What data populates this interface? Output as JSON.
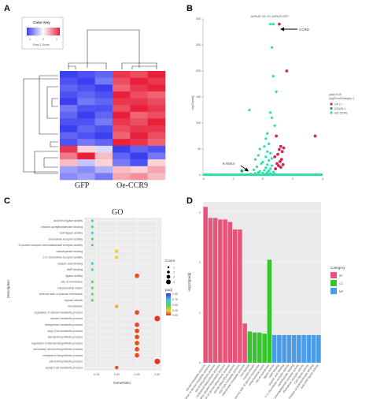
{
  "panels": {
    "a": {
      "label": "A",
      "color_key_title": "Color Key",
      "color_key_ticks": [
        "-1",
        "0",
        "1"
      ],
      "color_key_xlabel": "Row Z-Score",
      "col_labels": [
        "GFP",
        "Oe-CCR9"
      ],
      "heatmap": {
        "rows": 16,
        "cols": 6,
        "values": [
          [
            -1.0,
            -0.9,
            -0.8,
            0.9,
            0.8,
            1.0
          ],
          [
            -0.9,
            -1.0,
            -0.7,
            0.8,
            1.0,
            0.9
          ],
          [
            -0.8,
            -0.9,
            -1.0,
            0.7,
            0.9,
            1.0
          ],
          [
            -0.9,
            -0.8,
            -0.9,
            1.0,
            0.8,
            0.7
          ],
          [
            -1.0,
            -0.7,
            -0.8,
            0.9,
            0.9,
            0.8
          ],
          [
            -0.7,
            -0.9,
            -0.9,
            0.8,
            1.0,
            0.9
          ],
          [
            -0.8,
            -1.0,
            -0.8,
            1.0,
            0.7,
            0.8
          ],
          [
            -0.9,
            -0.9,
            -0.7,
            0.9,
            0.8,
            1.0
          ],
          [
            -1.0,
            -0.8,
            -0.9,
            0.8,
            0.9,
            0.9
          ],
          [
            -0.8,
            -0.9,
            -1.0,
            0.7,
            1.0,
            0.8
          ],
          [
            -0.9,
            -0.7,
            -0.8,
            1.0,
            0.9,
            0.7
          ],
          [
            0.9,
            0.2,
            -0.2,
            -1.0,
            -0.8,
            -0.9
          ],
          [
            0.6,
            1.0,
            0.3,
            -0.8,
            -1.0,
            -0.7
          ],
          [
            0.3,
            -0.3,
            0.2,
            -0.7,
            -0.9,
            0.2
          ],
          [
            -0.5,
            -0.6,
            -0.4,
            0.3,
            0.2,
            0.4
          ],
          [
            -0.6,
            -0.5,
            -0.7,
            0.4,
            0.5,
            0.3
          ]
        ]
      }
    },
    "b": {
      "label": "B",
      "title": "JURKAT-OE VS JURKAT-GFP",
      "ylabel": "-log10(padj)",
      "legend_title": "padj<0.05",
      "legend_subtitle": "|log2FoldChange|>1",
      "legend": [
        {
          "label": "UP 17",
          "color": "#d4264a"
        },
        {
          "label": "DOWN 1",
          "color": "#15a37a"
        },
        {
          "label": "NO 25249",
          "color": "#2ee0a8"
        }
      ],
      "annotations": {
        "ccr9": "CCR9",
        "kank4": "KANK4"
      }
    },
    "c": {
      "label": "C",
      "title": "GO",
      "ylabel": "Description",
      "xlabel": "GeneRatio",
      "count_title": "Count",
      "padj_title": "padj",
      "count_ticks": [
        "1",
        "2",
        "3",
        "4"
      ],
      "padj_ticks": [
        "1.00",
        "0.75",
        "0.50",
        "0.25",
        "0.00"
      ]
    },
    "d": {
      "label": "D",
      "ylabel": "-log10(padj)",
      "legend_title": "Category",
      "legend": [
        {
          "label": "BP",
          "color": "#e8537a"
        },
        {
          "label": "CC",
          "color": "#36c52d"
        },
        {
          "label": "MF",
          "color": "#4a9be8"
        }
      ]
    }
  },
  "chart_data": [
    {
      "type": "scatter",
      "title": "JURKAT-OE VS JURKAT-GFP",
      "xlabel": "",
      "ylabel": "-log10(padj)",
      "xlim": [
        -4,
        4
      ],
      "ylim": [
        0,
        300
      ],
      "xticks": [
        "-4",
        "-2",
        "0",
        "2",
        "4"
      ],
      "yticks": [
        "0",
        "50",
        "100",
        "150",
        "200",
        "250",
        "300"
      ],
      "series": [
        {
          "name": "UP 17",
          "color": "#d4264a",
          "points": [
            [
              1.1,
              290
            ],
            [
              1.6,
              200
            ],
            [
              0.9,
              75
            ],
            [
              1.2,
              55
            ],
            [
              1.4,
              52
            ],
            [
              1.1,
              49
            ],
            [
              1.3,
              45
            ],
            [
              1.0,
              40
            ],
            [
              0.8,
              35
            ],
            [
              1.25,
              30
            ],
            [
              1.15,
              26
            ],
            [
              0.95,
              22
            ],
            [
              1.35,
              20
            ],
            [
              1.05,
              18
            ],
            [
              1.2,
              15
            ],
            [
              0.85,
              12
            ],
            [
              3.5,
              75
            ]
          ]
        },
        {
          "name": "DOWN 1",
          "color": "#15a37a",
          "points": [
            [
              -1.4,
              8
            ]
          ]
        },
        {
          "name": "NO 25249",
          "color": "#2ee0a8",
          "points": [
            [
              0.5,
              290
            ],
            [
              0.7,
              290
            ],
            [
              0.6,
              245
            ],
            [
              0.7,
              190
            ],
            [
              0.9,
              160
            ],
            [
              0.5,
              120
            ],
            [
              -0.9,
              125
            ],
            [
              0.6,
              110
            ],
            [
              0.8,
              95
            ],
            [
              0.3,
              80
            ],
            [
              0.2,
              70
            ],
            [
              0.4,
              60
            ],
            [
              0.1,
              55
            ],
            [
              -0.2,
              50
            ],
            [
              0.3,
              45
            ],
            [
              0.5,
              42
            ],
            [
              -0.3,
              38
            ],
            [
              0.2,
              35
            ],
            [
              0.6,
              32
            ],
            [
              -0.5,
              30
            ],
            [
              0.4,
              28
            ],
            [
              0.0,
              25
            ],
            [
              -0.1,
              22
            ],
            [
              0.3,
              20
            ],
            [
              0.6,
              18
            ],
            [
              -0.4,
              16
            ],
            [
              0.2,
              14
            ],
            [
              0.5,
              12
            ],
            [
              -0.6,
              10
            ],
            [
              0.1,
              9
            ],
            [
              0.4,
              8
            ],
            [
              -0.2,
              7
            ],
            [
              0.7,
              6
            ],
            [
              -0.3,
              5
            ],
            [
              0.3,
              5
            ],
            [
              0.0,
              4
            ],
            [
              -0.5,
              3
            ],
            [
              0.5,
              3
            ],
            [
              0.2,
              2
            ],
            [
              -0.8,
              2
            ],
            [
              0.8,
              2
            ],
            [
              -1.5,
              1
            ],
            [
              1.5,
              1
            ],
            [
              -2.5,
              1
            ],
            [
              2.5,
              1
            ],
            [
              -3.5,
              1
            ],
            [
              3.5,
              1
            ],
            [
              -1.0,
              1
            ],
            [
              1.0,
              1
            ],
            [
              0.0,
              1
            ]
          ]
        }
      ],
      "annotations": [
        "CCR9",
        "KANK4"
      ]
    },
    {
      "type": "scatter",
      "title": "GO",
      "xlabel": "GeneRatio",
      "ylabel": "Description",
      "xlim": [
        0.12,
        0.31
      ],
      "xticks": [
        "0.15",
        "0.20",
        "0.25",
        "0.30"
      ],
      "categories": [
        "acid-thiol ligase activity",
        "histone acetyltransferase binding",
        "CoA-ligase activity",
        "chemokine receptor activity",
        "G-protein coupled chemoattractant receptor activity",
        "carbohydrate binding",
        "C-C chemokine receptor activity",
        "organic acid binding",
        "AMP binding",
        "ligase activity",
        "site of membrane",
        "mitochondrial matrix",
        "external side of plasma membrane",
        "myosin sheath",
        "microtubule",
        "regulation of steroid metabolic process",
        "steroid metabolic process",
        "triterpenoid metabolic process",
        "acyl-CoA metabolic process",
        "steroid biosynthetic process",
        "regulation of steroid biosynthetic process",
        "secondary alcohol biosynthetic process",
        "cholesterol biosynthetic process",
        "sterol biosynthetic process",
        "acetyl-CoA metabolic process"
      ],
      "x": [
        0.14,
        0.14,
        0.14,
        0.14,
        0.14,
        0.2,
        0.2,
        0.14,
        0.14,
        0.25,
        0.14,
        0.14,
        0.14,
        0.14,
        0.2,
        0.25,
        0.3,
        0.25,
        0.25,
        0.25,
        0.25,
        0.25,
        0.25,
        0.3,
        0.2
      ],
      "count": [
        1,
        1,
        1,
        1,
        1,
        2,
        2,
        1,
        1,
        3,
        1,
        1,
        1,
        1,
        2,
        3,
        4,
        3,
        3,
        3,
        3,
        3,
        3,
        4,
        2
      ],
      "padj": [
        0.7,
        0.55,
        0.7,
        0.55,
        0.55,
        0.25,
        0.25,
        0.7,
        0.7,
        0.05,
        0.5,
        0.5,
        0.5,
        0.5,
        0.2,
        0.05,
        0.02,
        0.05,
        0.05,
        0.05,
        0.05,
        0.05,
        0.05,
        0.02,
        0.05
      ]
    },
    {
      "type": "bar",
      "xlabel": "",
      "ylabel": "-log10(padj)",
      "ylim": [
        0,
        3.2
      ],
      "yticks": [
        "0",
        "1",
        "2",
        "3"
      ],
      "categories": [
        "steroid metabolic process",
        "regulation of steroid metabolic process",
        "sterol biosynthetic process",
        "cholesterol biosynthetic process",
        "secondary alcohol biosynthetic process",
        "regulation of steroid biosynthetic process",
        "steroid biosynthetic process",
        "acyl-CoA metabolic process",
        "triterpenoid metabolic process",
        "microtubule",
        "myosin sheath",
        "external side of plasma membrane",
        "mitochondrial matrix",
        "site of membrane",
        "ligase activity",
        "AMP binding",
        "organic acid binding",
        "C-C chemokine receptor activity",
        "carbohydrate binding",
        "G-protein coupled chemoattractant receptor activity",
        "chemokine receptor activity",
        "CoA-ligase activity",
        "histone acetyltransferase binding",
        "acid-thiol ligase activity"
      ],
      "values": [
        3.1,
        2.88,
        2.88,
        2.85,
        2.85,
        2.8,
        2.65,
        2.65,
        0.78,
        0.62,
        0.6,
        0.6,
        0.58,
        2.05,
        0.55,
        0.55,
        0.55,
        0.55,
        0.55,
        0.55,
        0.55,
        0.55,
        0.55,
        0.55
      ],
      "colors": [
        "#e8537a",
        "#e8537a",
        "#e8537a",
        "#e8537a",
        "#e8537a",
        "#e8537a",
        "#e8537a",
        "#e8537a",
        "#e8537a",
        "#36c52d",
        "#36c52d",
        "#36c52d",
        "#36c52d",
        "#36c52d",
        "#4a9be8",
        "#4a9be8",
        "#4a9be8",
        "#4a9be8",
        "#4a9be8",
        "#4a9be8",
        "#4a9be8",
        "#4a9be8",
        "#4a9be8",
        "#4a9be8"
      ]
    }
  ]
}
